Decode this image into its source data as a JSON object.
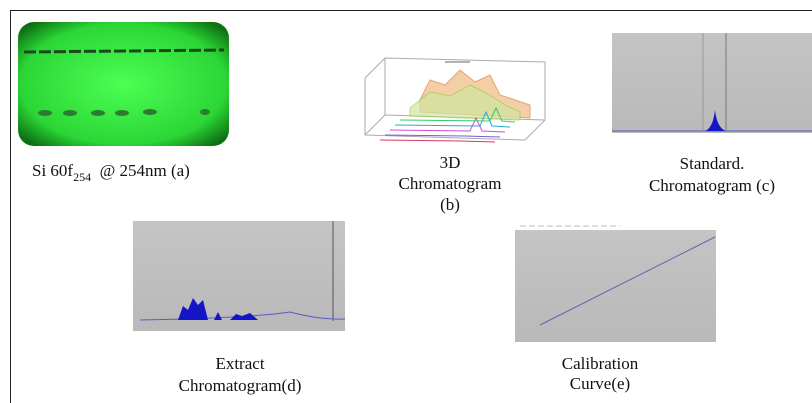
{
  "panels": [
    {
      "caption": {
        "main": "Si 60f",
        "subscript": "254",
        "rest": "  @ 254nm (a)"
      }
    },
    {
      "caption": {
        "lines": [
          "3D",
          "Chromatogram",
          "(b)"
        ]
      }
    },
    {
      "caption": {
        "lines": [
          "Standard.",
          "Chromatogram (c)"
        ]
      }
    },
    {
      "caption": {
        "lines": [
          "Extract",
          "Chromatogram(d)"
        ]
      }
    },
    {
      "caption": {
        "lines": [
          "Calibration",
          "Curve(e)"
        ]
      }
    }
  ]
}
